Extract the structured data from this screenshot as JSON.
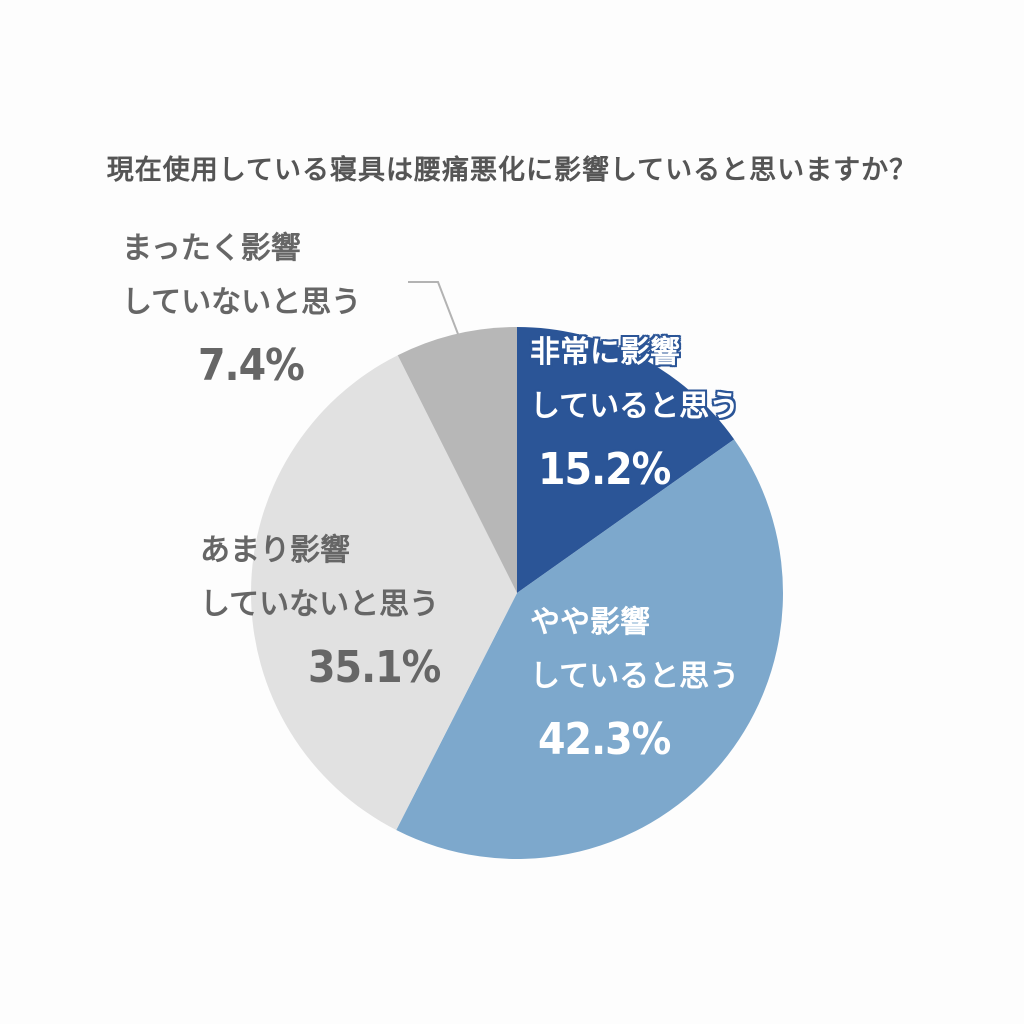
{
  "chart_data": {
    "type": "pie",
    "title": "現在使用している寝具は腰痛悪化に影響していると思いますか？",
    "slices": [
      {
        "label_lines": [
          "非常に影響",
          "していると思う"
        ],
        "percent_label": "15.2%",
        "value": 15.2,
        "color": "#2b5597"
      },
      {
        "label_lines": [
          "やや影響",
          "していると思う"
        ],
        "percent_label": "42.3%",
        "value": 42.3,
        "color": "#7da8cc"
      },
      {
        "label_lines": [
          "あまり影響",
          "していないと思う"
        ],
        "percent_label": "35.1%",
        "value": 35.1,
        "color": "#e1e1e1"
      },
      {
        "label_lines": [
          "まったく影響",
          "していないと思う"
        ],
        "percent_label": "7.4%",
        "value": 7.4,
        "color": "#b7b7b7"
      }
    ],
    "start": "top",
    "direction": "clockwise",
    "legend": "none"
  }
}
